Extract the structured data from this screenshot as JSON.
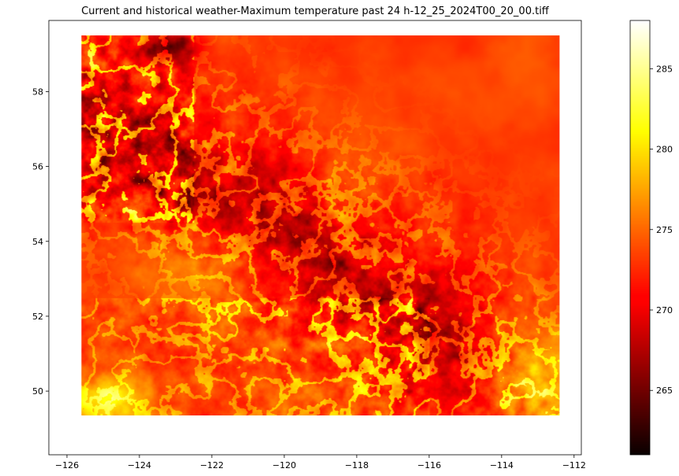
{
  "chart_data": {
    "type": "heatmap",
    "title": "Current and historical weather-Maximum temperature past 24 h-12_25_2024T00_20_00.tiff",
    "xlabel": "",
    "ylabel": "",
    "xlim": [
      -126.5,
      -111.8
    ],
    "ylim": [
      48.3,
      59.9
    ],
    "xticks": [
      -126,
      -124,
      -122,
      -120,
      -118,
      -116,
      -114,
      -112
    ],
    "yticks": [
      50,
      52,
      54,
      56,
      58
    ],
    "raster_extent": {
      "lon": [
        -125.6,
        -112.4
      ],
      "lat": [
        49.35,
        59.5
      ]
    },
    "colormap": "hot",
    "colorbar": {
      "vmin": 261,
      "vmax": 288,
      "ticks": [
        265,
        270,
        275,
        280,
        285
      ]
    },
    "field_features": {
      "cold_ridge_line": [
        [
          -125.6,
          57.2
        ],
        [
          -123.0,
          56.0
        ],
        [
          -120.0,
          54.2
        ],
        [
          -117.5,
          52.7
        ],
        [
          -115.0,
          51.0
        ],
        [
          -114.0,
          49.5
        ]
      ],
      "cold_patch_center": [
        -123.2,
        59.2
      ],
      "warm_plains_center": [
        -113.2,
        50.0
      ],
      "warm_southwest_center": [
        -124.8,
        49.8
      ]
    },
    "grid": false
  }
}
